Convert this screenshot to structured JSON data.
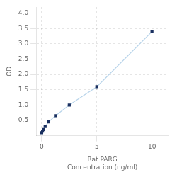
{
  "chart_data": {
    "type": "line",
    "x": [
      0,
      0.078,
      0.156,
      0.313,
      0.625,
      1.25,
      2.5,
      5,
      10
    ],
    "values": [
      0.1,
      0.15,
      0.2,
      0.3,
      0.45,
      0.65,
      1.0,
      1.6,
      3.4
    ],
    "color": "#b8d4ea",
    "colors": [
      "#1a3060",
      "#1a3060",
      "#1a3060",
      "#1a3060",
      "#1a3060",
      "#1a3060",
      "#1a3060",
      "#1a3060",
      "#1a3060"
    ],
    "marker": "square",
    "xlabel": "Rat PARG\nConcentration (ng/ml)",
    "ylabel": "OD",
    "xlim": [
      -0.5,
      11.5
    ],
    "ylim": [
      0,
      4.2
    ],
    "xticks": [
      0,
      5,
      10
    ],
    "yticks": [
      0.5,
      {
        "value": 1.0,
        "label": "1.0"
      },
      1.5,
      {
        "value": 2.0,
        "label": "2.0"
      },
      2.5,
      {
        "value": 3.0,
        "label": "3.0"
      },
      3.5,
      {
        "value": 4.0,
        "label": "4.0"
      }
    ],
    "grid": true
  }
}
